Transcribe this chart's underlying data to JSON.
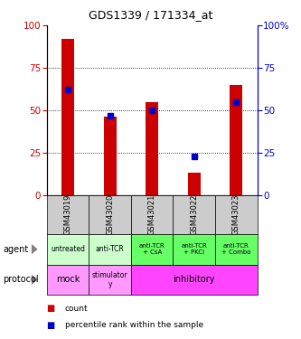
{
  "title": "GDS1339 / 171334_at",
  "samples": [
    "GSM43019",
    "GSM43020",
    "GSM43021",
    "GSM43022",
    "GSM43023"
  ],
  "count_values": [
    92,
    46,
    55,
    13,
    65
  ],
  "percentile_values": [
    62,
    47,
    50,
    23,
    55
  ],
  "bar_color": "#cc0000",
  "dot_color": "#0000cc",
  "ylim": [
    0,
    100
  ],
  "yticks": [
    0,
    25,
    50,
    75,
    100
  ],
  "agent_labels": [
    "untreated",
    "anti-TCR",
    "anti-TCR\n+ CsA",
    "anti-TCR\n+ PKCi",
    "anti-TCR\n+ Combo"
  ],
  "agent_color_light": "#ccffcc",
  "agent_color_dark": "#66ff66",
  "protocol_color_light": "#ff99ff",
  "protocol_color_inhib": "#ff44ff",
  "sample_bg_color": "#cccccc",
  "legend_count_color": "#cc0000",
  "legend_pct_color": "#0000cc",
  "grid_ticks": [
    25,
    50,
    75
  ]
}
